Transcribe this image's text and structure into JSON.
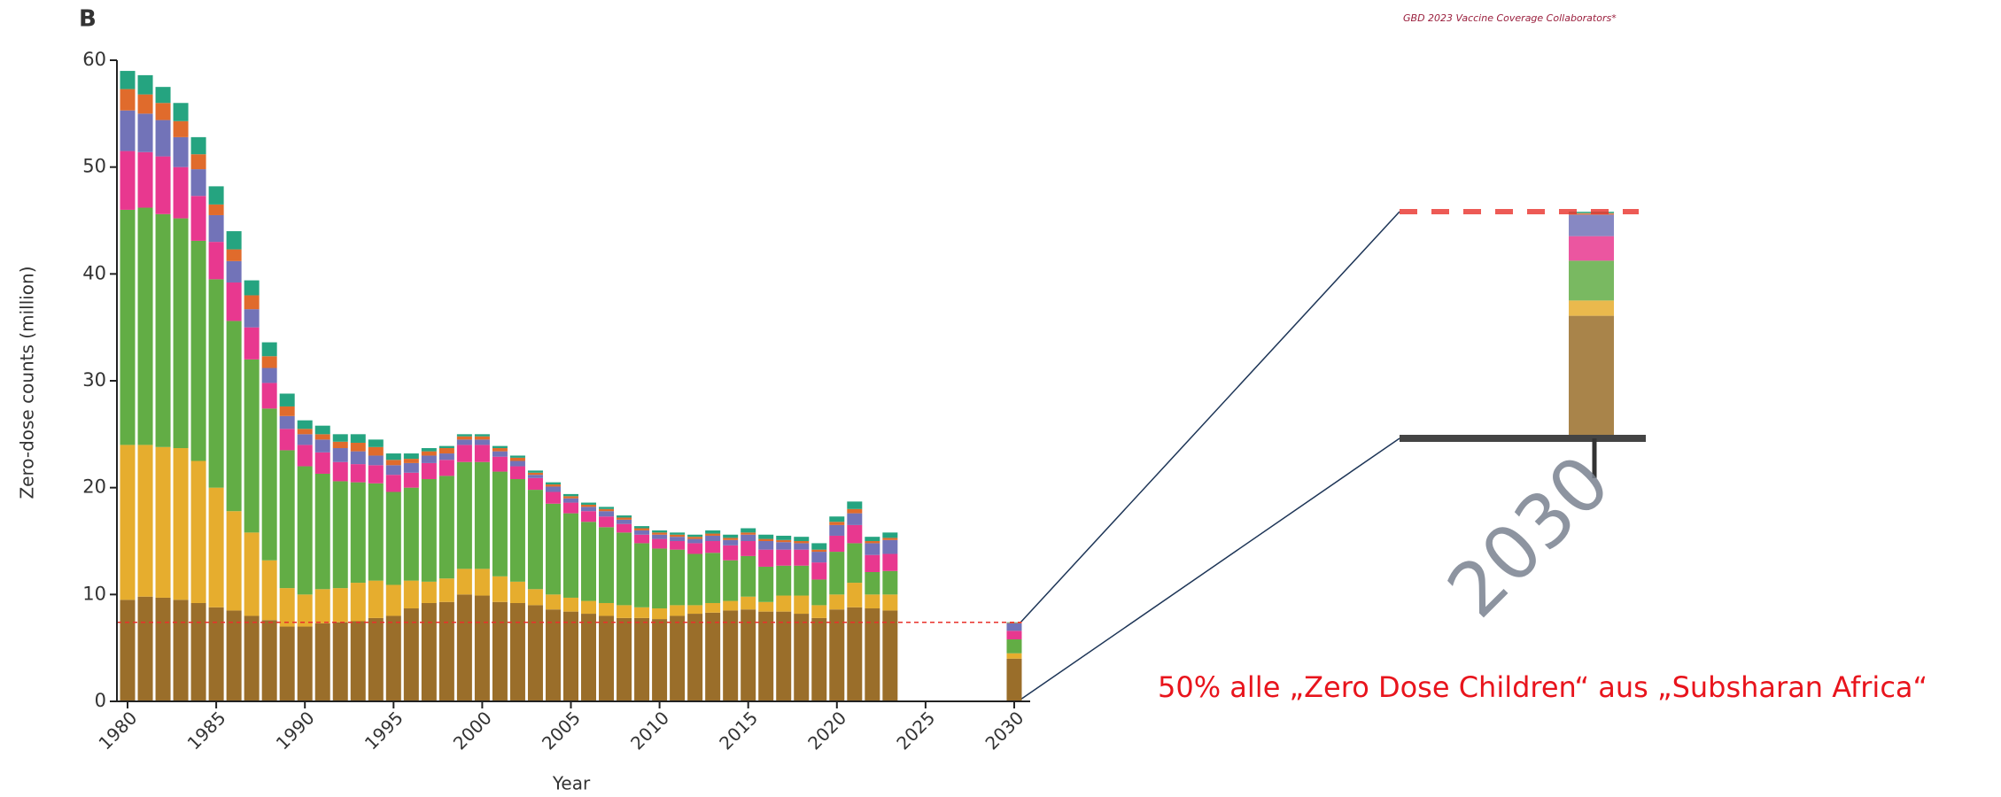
{
  "chart_data": {
    "type": "stacked_bar",
    "panel": "B",
    "header": "GBD 2023 Vaccine Coverage Collaborators*",
    "ylabel": "Zero-dose counts (million)",
    "xlabel": "Year",
    "annotation": "50% alle „Zero Dose Children“ aus „Subsharan Africa“",
    "x": [
      1980,
      1981,
      1982,
      1983,
      1984,
      1985,
      1986,
      1987,
      1988,
      1989,
      1990,
      1991,
      1992,
      1993,
      1994,
      1995,
      1996,
      1997,
      1998,
      1999,
      2000,
      2001,
      2002,
      2003,
      2004,
      2005,
      2006,
      2007,
      2008,
      2009,
      2010,
      2011,
      2012,
      2013,
      2014,
      2015,
      2016,
      2017,
      2018,
      2019,
      2020,
      2021,
      2022,
      2023,
      2030
    ],
    "series": [
      {
        "color": "#9a6e2a",
        "values": [
          9.5,
          9.8,
          9.7,
          9.5,
          9.2,
          8.8,
          8.5,
          8,
          7.6,
          7,
          7,
          7.3,
          7.4,
          7.5,
          7.8,
          8,
          8.7,
          9.2,
          9.3,
          10,
          9.9,
          9.3,
          9.2,
          9,
          8.6,
          8.4,
          8.2,
          8,
          7.8,
          7.8,
          7.7,
          8,
          8.2,
          8.3,
          8.5,
          8.6,
          8.4,
          8.4,
          8.2,
          7.8,
          8.6,
          8.8,
          8.7,
          8.5,
          4.0
        ]
      },
      {
        "color": "#e6ad2e",
        "values": [
          14.5,
          14.2,
          14.1,
          14.2,
          13.3,
          11.2,
          9.3,
          7.8,
          5.6,
          3.6,
          3,
          3.2,
          3.2,
          3.6,
          3.5,
          2.9,
          2.6,
          2,
          2.2,
          2.4,
          2.5,
          2.4,
          2,
          1.5,
          1.4,
          1.3,
          1.2,
          1.2,
          1.2,
          1,
          1,
          1,
          0.8,
          0.9,
          0.9,
          1.2,
          0.9,
          1.5,
          1.7,
          1.2,
          1.4,
          2.3,
          1.3,
          1.5,
          0.5
        ]
      },
      {
        "color": "#62ad45",
        "values": [
          22,
          22.2,
          21.8,
          21.5,
          20.6,
          19.5,
          17.8,
          16.2,
          14.2,
          12.9,
          12,
          10.8,
          10,
          9.4,
          9.1,
          8.7,
          8.7,
          9.6,
          9.6,
          10,
          10,
          9.8,
          9.6,
          9.3,
          8.5,
          7.9,
          7.4,
          7.1,
          6.8,
          6,
          5.6,
          5.2,
          4.8,
          4.7,
          3.8,
          3.8,
          3.3,
          2.8,
          2.8,
          2.4,
          4,
          3.7,
          2.1,
          2.2,
          1.3
        ]
      },
      {
        "color": "#e8388f",
        "values": [
          5.5,
          5.2,
          5.4,
          4.8,
          4.2,
          3.5,
          3.6,
          3,
          2.4,
          2,
          2,
          2,
          1.8,
          1.7,
          1.7,
          1.6,
          1.4,
          1.5,
          1.5,
          1.6,
          1.6,
          1.4,
          1.2,
          1.1,
          1.1,
          1,
          1,
          1,
          0.8,
          0.8,
          0.9,
          0.8,
          1,
          1.1,
          1.4,
          1.4,
          1.6,
          1.5,
          1.5,
          1.6,
          1.5,
          1.7,
          1.6,
          1.6,
          0.8
        ]
      },
      {
        "color": "#7273b8",
        "values": [
          3.8,
          3.6,
          3.4,
          2.8,
          2.5,
          2.5,
          2,
          1.7,
          1.4,
          1.2,
          1,
          1.2,
          1.3,
          1.2,
          0.9,
          0.9,
          0.9,
          0.7,
          0.6,
          0.5,
          0.5,
          0.5,
          0.5,
          0.3,
          0.5,
          0.4,
          0.4,
          0.5,
          0.4,
          0.4,
          0.4,
          0.4,
          0.4,
          0.5,
          0.5,
          0.6,
          0.8,
          0.7,
          0.6,
          1,
          1,
          1.1,
          1.1,
          1.3,
          0.7
        ]
      },
      {
        "color": "#e06b2c",
        "values": [
          2,
          1.8,
          1.6,
          1.5,
          1.4,
          1,
          1.1,
          1.3,
          1.1,
          0.9,
          0.5,
          0.5,
          0.6,
          0.8,
          0.8,
          0.5,
          0.4,
          0.4,
          0.5,
          0.3,
          0.3,
          0.3,
          0.3,
          0.2,
          0.2,
          0.2,
          0.2,
          0.2,
          0.2,
          0.2,
          0.2,
          0.2,
          0.2,
          0.2,
          0.2,
          0.2,
          0.2,
          0.2,
          0.2,
          0.2,
          0.3,
          0.4,
          0.2,
          0.2,
          0.05
        ]
      },
      {
        "color": "#25a480",
        "values": [
          1.7,
          1.8,
          1.5,
          1.7,
          1.6,
          1.7,
          1.7,
          1.4,
          1.3,
          1.2,
          0.8,
          0.8,
          0.7,
          0.8,
          0.7,
          0.6,
          0.5,
          0.3,
          0.2,
          0.2,
          0.2,
          0.2,
          0.2,
          0.2,
          0.2,
          0.2,
          0.2,
          0.2,
          0.2,
          0.2,
          0.2,
          0.2,
          0.2,
          0.3,
          0.3,
          0.4,
          0.4,
          0.4,
          0.4,
          0.6,
          0.5,
          0.7,
          0.4,
          0.5,
          0.05
        ]
      }
    ],
    "hline": 7.4,
    "hline_color": "#e8312a",
    "xlim": [
      1979.4,
      2030.9
    ],
    "xticks": [
      1980,
      1985,
      1990,
      1995,
      2000,
      2005,
      2010,
      2015,
      2020,
      2025,
      2030
    ],
    "ylim": [
      0,
      60
    ],
    "yticks": [
      0,
      10,
      20,
      30,
      40,
      50,
      60
    ]
  }
}
